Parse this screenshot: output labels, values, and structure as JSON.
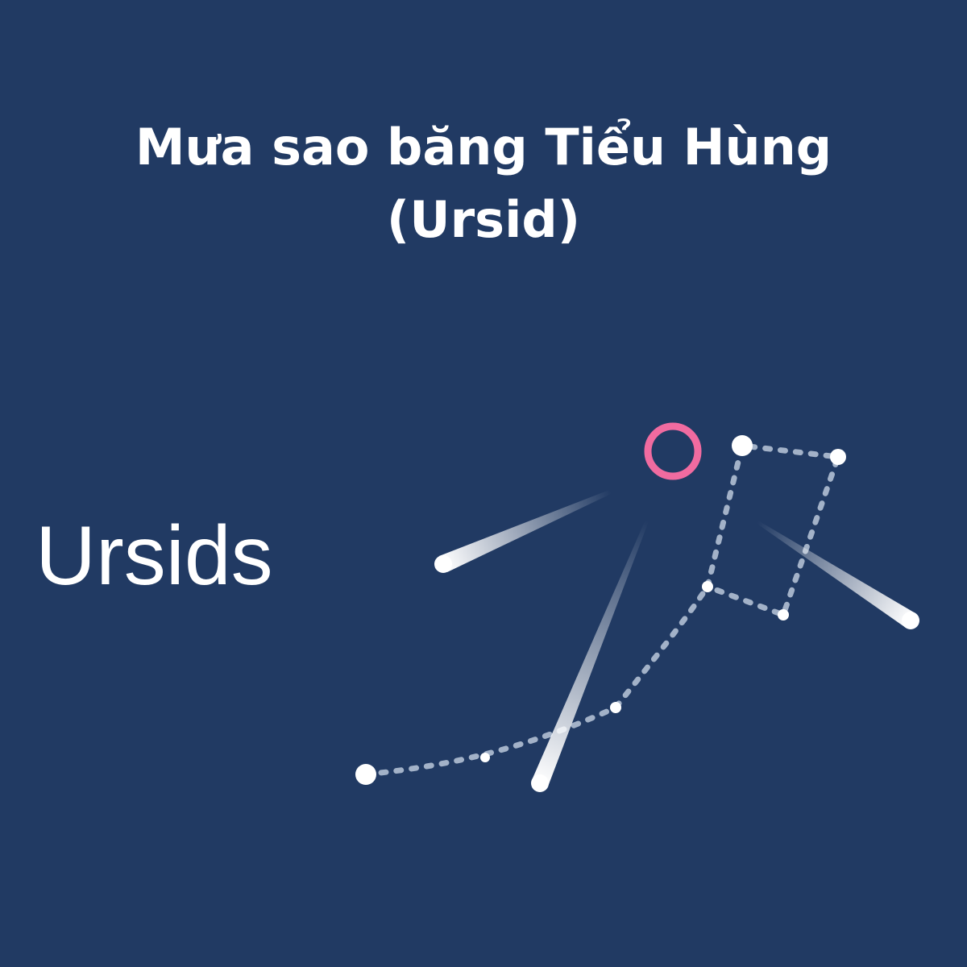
{
  "title": {
    "line1": "Mưa sao băng Tiểu Hùng",
    "line2": "(Ursid)"
  },
  "label": "Ursids",
  "colors": {
    "background": "#213a63",
    "text": "#ffffff",
    "radiant": "#f06ba0",
    "star": "#ffffff",
    "constellation_line": "#a3b2c8"
  },
  "icons": {
    "radiant": "ring-icon",
    "meteor": "meteor-streak-icon",
    "star": "star-dot-icon"
  }
}
